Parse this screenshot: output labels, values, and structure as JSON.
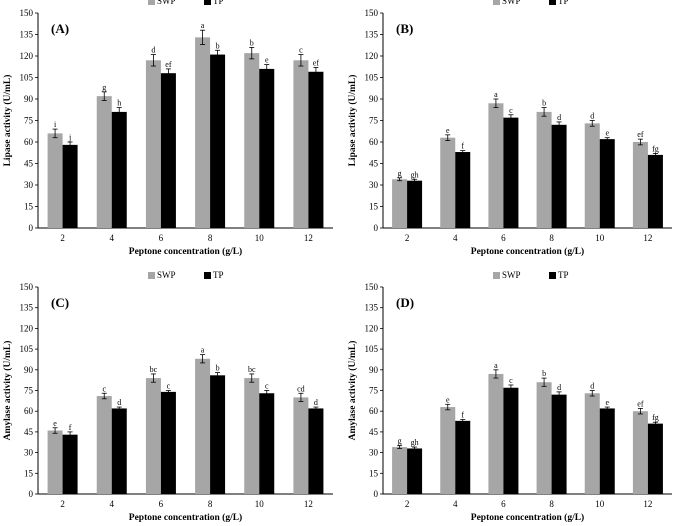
{
  "chart_data": [
    {
      "panel_label": "(A)",
      "type": "bar",
      "xlabel": "Peptone concentration (g/L)",
      "ylabel": "Lipase activity (U/mL)",
      "ylim": [
        0,
        150
      ],
      "yticks": [
        0,
        15,
        30,
        45,
        60,
        75,
        90,
        105,
        120,
        135,
        150
      ],
      "categories": [
        "2",
        "4",
        "6",
        "8",
        "10",
        "12"
      ],
      "series": [
        {
          "name": "SWP",
          "color": "#a6a6a6",
          "values": [
            66,
            92,
            117,
            133,
            122,
            117
          ],
          "errors": [
            3,
            3,
            4,
            5,
            4,
            4
          ],
          "letters": [
            "i",
            "g",
            "d",
            "a",
            "b",
            "c"
          ]
        },
        {
          "name": "TP",
          "color": "#000000",
          "values": [
            58,
            81,
            108,
            121,
            111,
            109
          ],
          "errors": [
            2,
            3,
            3,
            3,
            3,
            3
          ],
          "letters": [
            "j",
            "h",
            "ef",
            "b",
            "e",
            "ef"
          ]
        }
      ],
      "legend": [
        "SWP",
        "TP"
      ]
    },
    {
      "panel_label": "(B)",
      "type": "bar",
      "xlabel": "Peptone concentration (g/L)",
      "ylabel": "Lipase activity (U/mL)",
      "ylim": [
        0,
        150
      ],
      "yticks": [
        0,
        15,
        30,
        45,
        60,
        75,
        90,
        105,
        120,
        135,
        150
      ],
      "categories": [
        "2",
        "4",
        "6",
        "8",
        "10",
        "12"
      ],
      "series": [
        {
          "name": "SWP",
          "color": "#a6a6a6",
          "values": [
            34,
            63,
            87,
            81,
            73,
            60
          ],
          "errors": [
            1,
            2,
            3,
            3,
            2,
            2
          ],
          "letters": [
            "g",
            "e",
            "a",
            "b",
            "d",
            "ef"
          ]
        },
        {
          "name": "TP",
          "color": "#000000",
          "values": [
            33,
            53,
            77,
            72,
            62,
            51
          ],
          "errors": [
            1,
            1,
            2,
            2,
            1,
            1
          ],
          "letters": [
            "gh",
            "f",
            "c",
            "d",
            "e",
            "fg"
          ]
        }
      ],
      "legend": [
        "SWP",
        "TP"
      ]
    },
    {
      "panel_label": "(C)",
      "type": "bar",
      "xlabel": "Peptone concentration (g/L)",
      "ylabel": "Amylase activity (U/mL)",
      "ylim": [
        0,
        150
      ],
      "yticks": [
        0,
        15,
        30,
        45,
        60,
        75,
        90,
        105,
        120,
        135,
        150
      ],
      "categories": [
        "2",
        "4",
        "6",
        "8",
        "10",
        "12"
      ],
      "series": [
        {
          "name": "SWP",
          "color": "#a6a6a6",
          "values": [
            46,
            71,
            84,
            98,
            84,
            70
          ],
          "errors": [
            2,
            2,
            3,
            3,
            3,
            3
          ],
          "letters": [
            "e",
            "c",
            "bc",
            "a",
            "bc",
            "cd"
          ]
        },
        {
          "name": "TP",
          "color": "#000000",
          "values": [
            43,
            62,
            74,
            86,
            73,
            62
          ],
          "errors": [
            2,
            1,
            1,
            2,
            2,
            1
          ],
          "letters": [
            "f",
            "d",
            "c",
            "b",
            "c",
            "d"
          ]
        }
      ],
      "legend": [
        "SWP",
        "TP"
      ]
    },
    {
      "panel_label": "(D)",
      "type": "bar",
      "xlabel": "Peptone concentration (g/L)",
      "ylabel": "Amylase activity (U/mL)",
      "ylim": [
        0,
        150
      ],
      "yticks": [
        0,
        15,
        30,
        45,
        60,
        75,
        90,
        105,
        120,
        135,
        150
      ],
      "categories": [
        "2",
        "4",
        "6",
        "8",
        "10",
        "12"
      ],
      "series": [
        {
          "name": "SWP",
          "color": "#a6a6a6",
          "values": [
            34,
            63,
            87,
            81,
            73,
            60
          ],
          "errors": [
            1,
            2,
            3,
            3,
            2,
            2
          ],
          "letters": [
            "g",
            "e",
            "a",
            "b",
            "d",
            "ef"
          ]
        },
        {
          "name": "TP",
          "color": "#000000",
          "values": [
            33,
            53,
            77,
            72,
            62,
            51
          ],
          "errors": [
            1,
            1,
            2,
            2,
            1,
            1
          ],
          "letters": [
            "gh",
            "f",
            "c",
            "d",
            "e",
            "fg"
          ]
        }
      ],
      "legend": [
        "SWP",
        "TP"
      ]
    }
  ]
}
